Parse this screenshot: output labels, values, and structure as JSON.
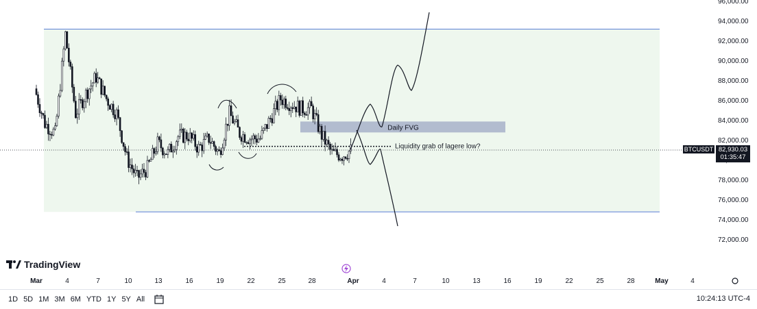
{
  "chart_data": {
    "type": "candlestick",
    "y_ticks": [
      "96,000.00",
      "94,000.00",
      "92,000.00",
      "90,000.00",
      "88,000.00",
      "86,000.00",
      "84,000.00",
      "82,000.00",
      "80,000.00",
      "78,000.00",
      "76,000.00",
      "74,000.00",
      "72,000.00"
    ],
    "x_ticks": [
      "Mar",
      "4",
      "7",
      "10",
      "13",
      "16",
      "19",
      "22",
      "25",
      "28",
      "Apr",
      "4",
      "7",
      "10",
      "13",
      "16",
      "19",
      "22",
      "25",
      "28",
      "May",
      "4"
    ],
    "ylim": [
      71000,
      96500
    ],
    "current_price": "82,930.03",
    "countdown": "01:35:47",
    "symbol": "BTCUSDT",
    "range_box": {
      "top": 95000,
      "bottom": 76600
    },
    "fvg": {
      "label": "Daily FVG",
      "top": 85700,
      "bottom": 84600
    },
    "liquidity": {
      "label": "Liquidity grab of lagere low?",
      "price": 83200
    },
    "series_close_approx": [
      {
        "x": "Feb 28",
        "y": 89000
      },
      {
        "x": "Mar 1",
        "y": 85500
      },
      {
        "x": "Mar 2",
        "y": 84500
      },
      {
        "x": "Mar 3",
        "y": 94500
      },
      {
        "x": "Mar 4",
        "y": 86500
      },
      {
        "x": "Mar 5",
        "y": 88500
      },
      {
        "x": "Mar 6",
        "y": 90200
      },
      {
        "x": "Mar 7",
        "y": 88000
      },
      {
        "x": "Mar 8",
        "y": 86500
      },
      {
        "x": "Mar 9",
        "y": 82000
      },
      {
        "x": "Mar 10",
        "y": 80000
      },
      {
        "x": "Mar 11",
        "y": 81000
      },
      {
        "x": "Mar 12",
        "y": 83500
      },
      {
        "x": "Mar 13",
        "y": 82500
      },
      {
        "x": "Mar 14",
        "y": 84200
      },
      {
        "x": "Mar 15",
        "y": 84300
      },
      {
        "x": "Mar 16",
        "y": 83000
      },
      {
        "x": "Mar 17",
        "y": 84000
      },
      {
        "x": "Mar 18",
        "y": 82500
      },
      {
        "x": "Mar 19",
        "y": 86500
      },
      {
        "x": "Mar 20",
        "y": 84500
      },
      {
        "x": "Mar 21",
        "y": 84000
      },
      {
        "x": "Mar 22",
        "y": 84000
      },
      {
        "x": "Mar 23",
        "y": 86000
      },
      {
        "x": "Mar 24",
        "y": 88000
      },
      {
        "x": "Mar 25",
        "y": 87500
      },
      {
        "x": "Mar 26",
        "y": 87000
      },
      {
        "x": "Mar 27",
        "y": 87000
      },
      {
        "x": "Mar 28",
        "y": 84300
      },
      {
        "x": "Mar 29",
        "y": 82500
      },
      {
        "x": "Mar 30",
        "y": 82300
      },
      {
        "x": "Mar 31",
        "y": 82900
      }
    ]
  },
  "ui": {
    "logo_text": "TradingView",
    "ranges": [
      "1D",
      "5D",
      "1M",
      "3M",
      "6M",
      "YTD",
      "1Y",
      "5Y",
      "All"
    ],
    "clock": "10:24:13 UTC-4",
    "colors": {
      "box_fill": "#eef7ee",
      "box_line": "#5b7fd6",
      "fvg_fill": "#b2bccf",
      "candle": "#131722"
    }
  }
}
